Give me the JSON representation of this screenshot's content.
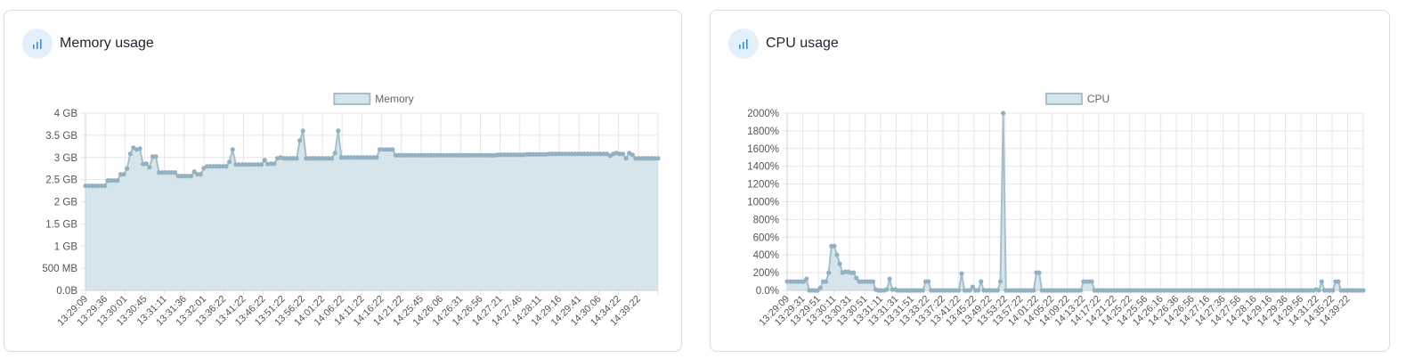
{
  "colors": {
    "line": "#a6bfcd",
    "point": "#94b1c2",
    "fill": "#d6e5ec",
    "grid": "#e3e6ea",
    "icon": "#3a8fd6",
    "icon_bg": "#e3f0fb"
  },
  "icons": {
    "chart": "bar-chart-icon"
  },
  "memory_card": {
    "title": "Memory usage",
    "chart_data": {
      "type": "area",
      "legend": "Memory",
      "legend_position": "top-center",
      "grid": true,
      "ylim": [
        0,
        4
      ],
      "y_ticks": [
        "4 GB",
        "3.5 GB",
        "3 GB",
        "2.5 GB",
        "2 GB",
        "1.5 GB",
        "1 GB",
        "500 MB",
        "0.0B"
      ],
      "x_labels": [
        "13:29:09",
        "13:29:36",
        "13:30:01",
        "13:30:45",
        "13:31:11",
        "13:31:36",
        "13:32:01",
        "13:36:22",
        "13:41:22",
        "13:46:22",
        "13:51:22",
        "13:56:22",
        "14:01:22",
        "14:06:22",
        "14:11:22",
        "14:16:22",
        "14:21:22",
        "14:25:45",
        "14:26:06",
        "14:26:31",
        "14:26:56",
        "14:27:21",
        "14:27:46",
        "14:28:11",
        "14:29:16",
        "14:29:41",
        "14:30:06",
        "14:34:22",
        "14:39:22"
      ],
      "values": [
        2.36,
        2.36,
        2.36,
        2.36,
        2.36,
        2.36,
        2.36,
        2.48,
        2.48,
        2.48,
        2.48,
        2.62,
        2.62,
        2.75,
        3.08,
        3.22,
        3.18,
        3.2,
        2.85,
        2.86,
        2.78,
        3.02,
        3.02,
        2.66,
        2.66,
        2.66,
        2.66,
        2.66,
        2.66,
        2.58,
        2.58,
        2.58,
        2.58,
        2.58,
        2.68,
        2.62,
        2.62,
        2.76,
        2.8,
        2.8,
        2.8,
        2.8,
        2.8,
        2.8,
        2.8,
        2.9,
        3.18,
        2.84,
        2.84,
        2.84,
        2.84,
        2.84,
        2.84,
        2.84,
        2.84,
        2.84,
        2.94,
        2.85,
        2.86,
        2.86,
        2.98,
        3.0,
        2.98,
        2.98,
        2.98,
        2.98,
        2.98,
        3.38,
        3.6,
        2.98,
        2.98,
        2.98,
        2.98,
        2.98,
        2.98,
        2.98,
        2.98,
        2.98,
        3.1,
        3.6,
        3.0,
        3.0,
        3.0,
        3.0,
        3.0,
        3.0,
        3.0,
        3.0,
        3.0,
        3.0,
        3.0,
        3.0,
        3.18,
        3.18,
        3.18,
        3.18,
        3.18,
        3.05,
        3.05,
        3.05,
        3.05,
        3.05,
        3.05,
        3.05,
        3.05,
        3.05,
        3.05,
        3.05,
        3.05,
        3.05,
        3.05,
        3.05,
        3.05,
        3.05,
        3.05,
        3.05,
        3.05,
        3.05,
        3.05,
        3.05,
        3.05,
        3.05,
        3.05,
        3.05,
        3.05,
        3.05,
        3.05,
        3.05,
        3.05,
        3.06,
        3.06,
        3.06,
        3.06,
        3.06,
        3.06,
        3.06,
        3.06,
        3.06,
        3.07,
        3.07,
        3.07,
        3.07,
        3.07,
        3.07,
        3.07,
        3.08,
        3.08,
        3.08,
        3.08,
        3.08,
        3.08,
        3.08,
        3.08,
        3.08,
        3.08,
        3.08,
        3.08,
        3.08,
        3.08,
        3.08,
        3.08,
        3.08,
        3.08,
        3.08,
        3.04,
        3.08,
        3.1,
        3.08,
        3.08,
        2.98,
        3.1,
        3.06,
        2.98,
        2.98,
        2.98,
        2.98,
        2.98,
        2.98,
        2.98,
        2.98
      ]
    }
  },
  "cpu_card": {
    "title": "CPU usage",
    "chart_data": {
      "type": "area",
      "legend": "CPU",
      "legend_position": "top-center",
      "grid": true,
      "ylim": [
        0,
        2000
      ],
      "y_ticks": [
        "2000%",
        "1800%",
        "1600%",
        "1400%",
        "1200%",
        "1000%",
        "800%",
        "600%",
        "400%",
        "200%",
        "0.0%"
      ],
      "x_labels": [
        "13:29:09",
        "13:29:31",
        "13:29:51",
        "13:30:11",
        "13:30:31",
        "13:30:51",
        "13:31:11",
        "13:31:31",
        "13:31:51",
        "13:33:22",
        "13:37:22",
        "13:41:22",
        "13:45:22",
        "13:49:22",
        "13:53:22",
        "13:57:22",
        "14:01:22",
        "14:05:22",
        "14:09:22",
        "14:13:22",
        "14:17:22",
        "14:21:22",
        "14:25:22",
        "14:25:56",
        "14:26:16",
        "14:26:36",
        "14:26:56",
        "14:27:16",
        "14:27:36",
        "14:27:56",
        "14:28:16",
        "14:29:16",
        "14:29:36",
        "14:29:56",
        "14:31:22",
        "14:35:22",
        "14:39:22"
      ],
      "values": [
        100,
        100,
        100,
        100,
        100,
        100,
        100,
        130,
        0,
        0,
        0,
        0,
        30,
        100,
        100,
        200,
        500,
        500,
        400,
        300,
        200,
        210,
        210,
        200,
        200,
        140,
        100,
        100,
        100,
        100,
        100,
        100,
        10,
        0,
        0,
        0,
        10,
        130,
        10,
        10,
        0,
        0,
        0,
        0,
        0,
        0,
        0,
        0,
        0,
        0,
        100,
        100,
        0,
        0,
        0,
        0,
        0,
        0,
        0,
        0,
        0,
        0,
        0,
        190,
        0,
        0,
        0,
        40,
        0,
        0,
        100,
        0,
        0,
        0,
        0,
        0,
        0,
        100,
        2000,
        0,
        0,
        0,
        0,
        0,
        0,
        0,
        0,
        0,
        0,
        0,
        200,
        200,
        0,
        0,
        0,
        0,
        0,
        0,
        0,
        0,
        0,
        0,
        0,
        0,
        0,
        0,
        0,
        100,
        100,
        100,
        100,
        0,
        0,
        0,
        0,
        0,
        0,
        0,
        0,
        0,
        0,
        0,
        0,
        0,
        0,
        0,
        0,
        0,
        0,
        0,
        0,
        0,
        0,
        0,
        0,
        0,
        0,
        0,
        0,
        0,
        0,
        0,
        0,
        0,
        0,
        0,
        0,
        0,
        0,
        0,
        0,
        0,
        0,
        0,
        0,
        0,
        0,
        0,
        0,
        0,
        0,
        0,
        0,
        0,
        0,
        0,
        0,
        0,
        0,
        0,
        0,
        0,
        0,
        0,
        0,
        0,
        0,
        0,
        0,
        0,
        0,
        0,
        0,
        0,
        0,
        0,
        0,
        0,
        0,
        0,
        0,
        10,
        0,
        100,
        0,
        0,
        0,
        0,
        100,
        100,
        0,
        0,
        0,
        0,
        0,
        0,
        0,
        0,
        0
      ]
    }
  }
}
